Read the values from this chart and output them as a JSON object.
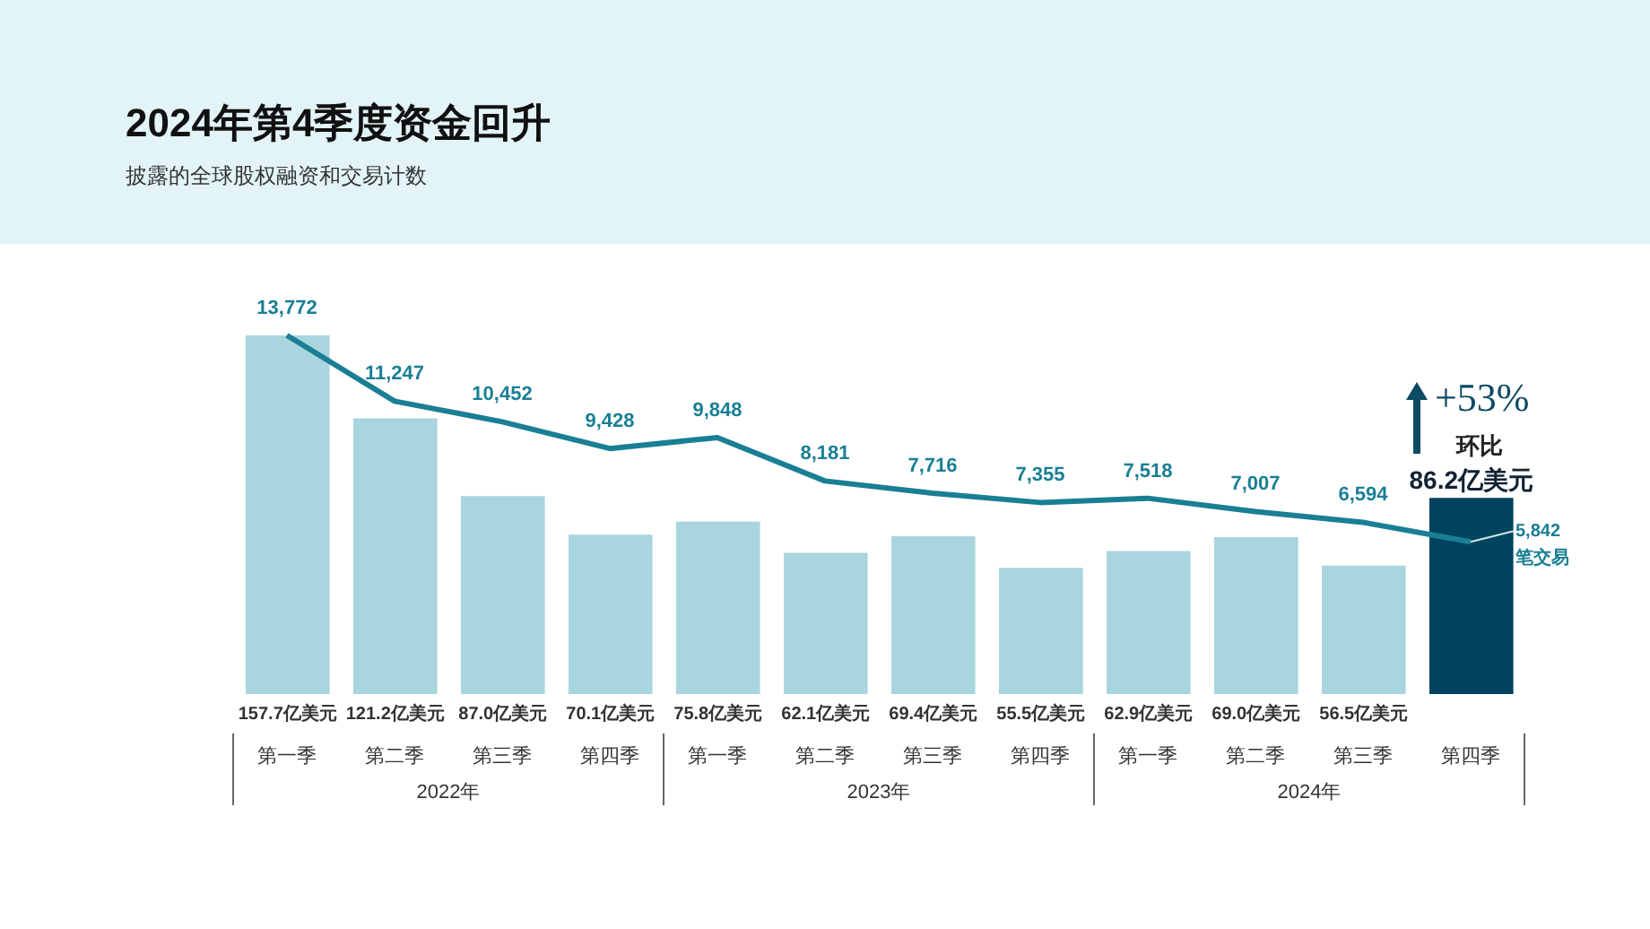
{
  "chart_data": {
    "type": "bar",
    "title": "2024年第4季度资金回升",
    "subtitle": "披露的全球股权融资和交易计数",
    "categories": [
      "第一季",
      "第二季",
      "第三季",
      "第四季",
      "第一季",
      "第二季",
      "第三季",
      "第四季",
      "第一季",
      "第二季",
      "第三季",
      "第四季"
    ],
    "series": [
      {
        "colors": [
          "#a8d5de",
          "#a8d5de",
          "#a8d5de",
          "#a8d5de",
          "#a8d5de",
          "#a8d5de",
          "#a8d5de",
          "#a8d5de",
          "#a8d5de",
          "#a8d5de",
          "#a8d5de",
          "#00435e"
        ],
        "values": [
          157.7,
          121.2,
          87.0,
          70.1,
          75.8,
          62.1,
          69.4,
          55.5,
          62.9,
          69.0,
          56.5,
          86.2
        ],
        "value_labels": [
          "157.7亿美元",
          "121.2亿美元",
          "87.0亿美元",
          "70.1亿美元",
          "75.8亿美元",
          "62.1亿美元",
          "69.4亿美元",
          "55.5亿美元",
          "62.9亿美元",
          "69.0亿美元",
          "56.5亿美元",
          "86.2亿美元"
        ]
      },
      {
        "type": "line",
        "axis": "y2",
        "color": "#1a7f94",
        "values": [
          13772,
          11247,
          10452,
          9428,
          9848,
          8181,
          7716,
          7355,
          7518,
          7007,
          6594,
          5842
        ],
        "value_labels": [
          "13,772",
          "11,247",
          "10,452",
          "9,428",
          "9,848",
          "8,181",
          "7,716",
          "7,355",
          "7,518",
          "7,007",
          "6,594",
          "5,842"
        ]
      }
    ],
    "annotations": [
      "2022年",
      "2023年",
      "2024年",
      "+53%",
      "环比",
      "笔交易"
    ],
    "legend": false,
    "grid": false,
    "marker": "none"
  }
}
